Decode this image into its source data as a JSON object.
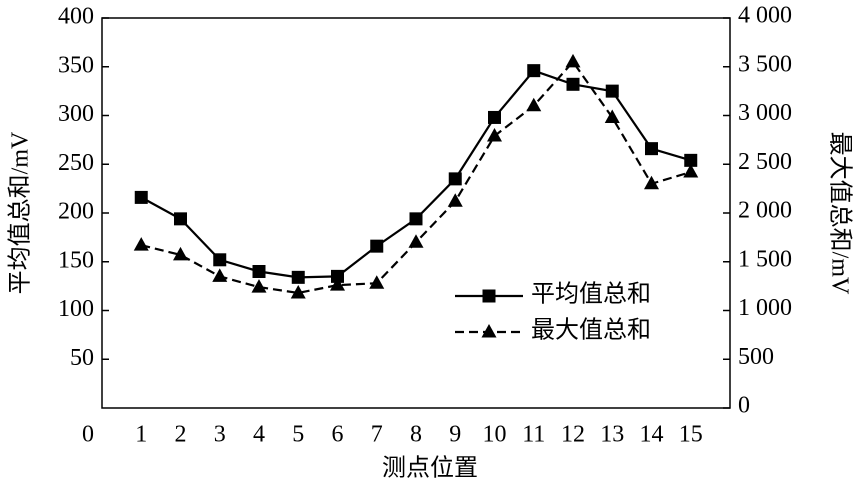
{
  "chart_data": {
    "type": "line",
    "x": [
      1,
      2,
      3,
      4,
      5,
      6,
      7,
      8,
      9,
      10,
      11,
      12,
      13,
      14,
      15
    ],
    "xlim": [
      0,
      16
    ],
    "xticks": [
      0,
      1,
      2,
      3,
      4,
      5,
      6,
      7,
      8,
      9,
      10,
      11,
      12,
      13,
      14,
      15
    ],
    "ylim": [
      0,
      400
    ],
    "yticks": [
      50,
      100,
      150,
      200,
      250,
      300,
      350,
      400
    ],
    "y2lim": [
      0,
      4000
    ],
    "y2ticks": [
      0,
      500,
      {
        "value": 1000,
        "label": "1 000"
      },
      {
        "value": 1500,
        "label": "1 500"
      },
      {
        "value": 2000,
        "label": "2 000"
      },
      {
        "value": 2500,
        "label": "2 500"
      },
      {
        "value": 3000,
        "label": "3 000"
      },
      {
        "value": 3500,
        "label": "3 500"
      },
      {
        "value": 4000,
        "label": "4 000"
      }
    ],
    "xlabel": "测点位置",
    "ylabel": "平均值总和/mV",
    "y2label": "最大值总和/mV",
    "legend": "right",
    "series": [
      {
        "name": "平均值总和",
        "color": "#000000",
        "linestyle": "solid",
        "marker": "square",
        "values": [
          216,
          194,
          152,
          140,
          134,
          135,
          166,
          194,
          235,
          298,
          346,
          332,
          325,
          266,
          254
        ]
      },
      {
        "name": "最大值总和",
        "color": "#000000",
        "linestyle": "dashed",
        "marker": "triangle",
        "axis": "y2",
        "values": [
          1670,
          1570,
          1350,
          1240,
          1180,
          1260,
          1280,
          1700,
          2120,
          2790,
          3100,
          3550,
          2980,
          2300,
          2420
        ]
      }
    ]
  }
}
